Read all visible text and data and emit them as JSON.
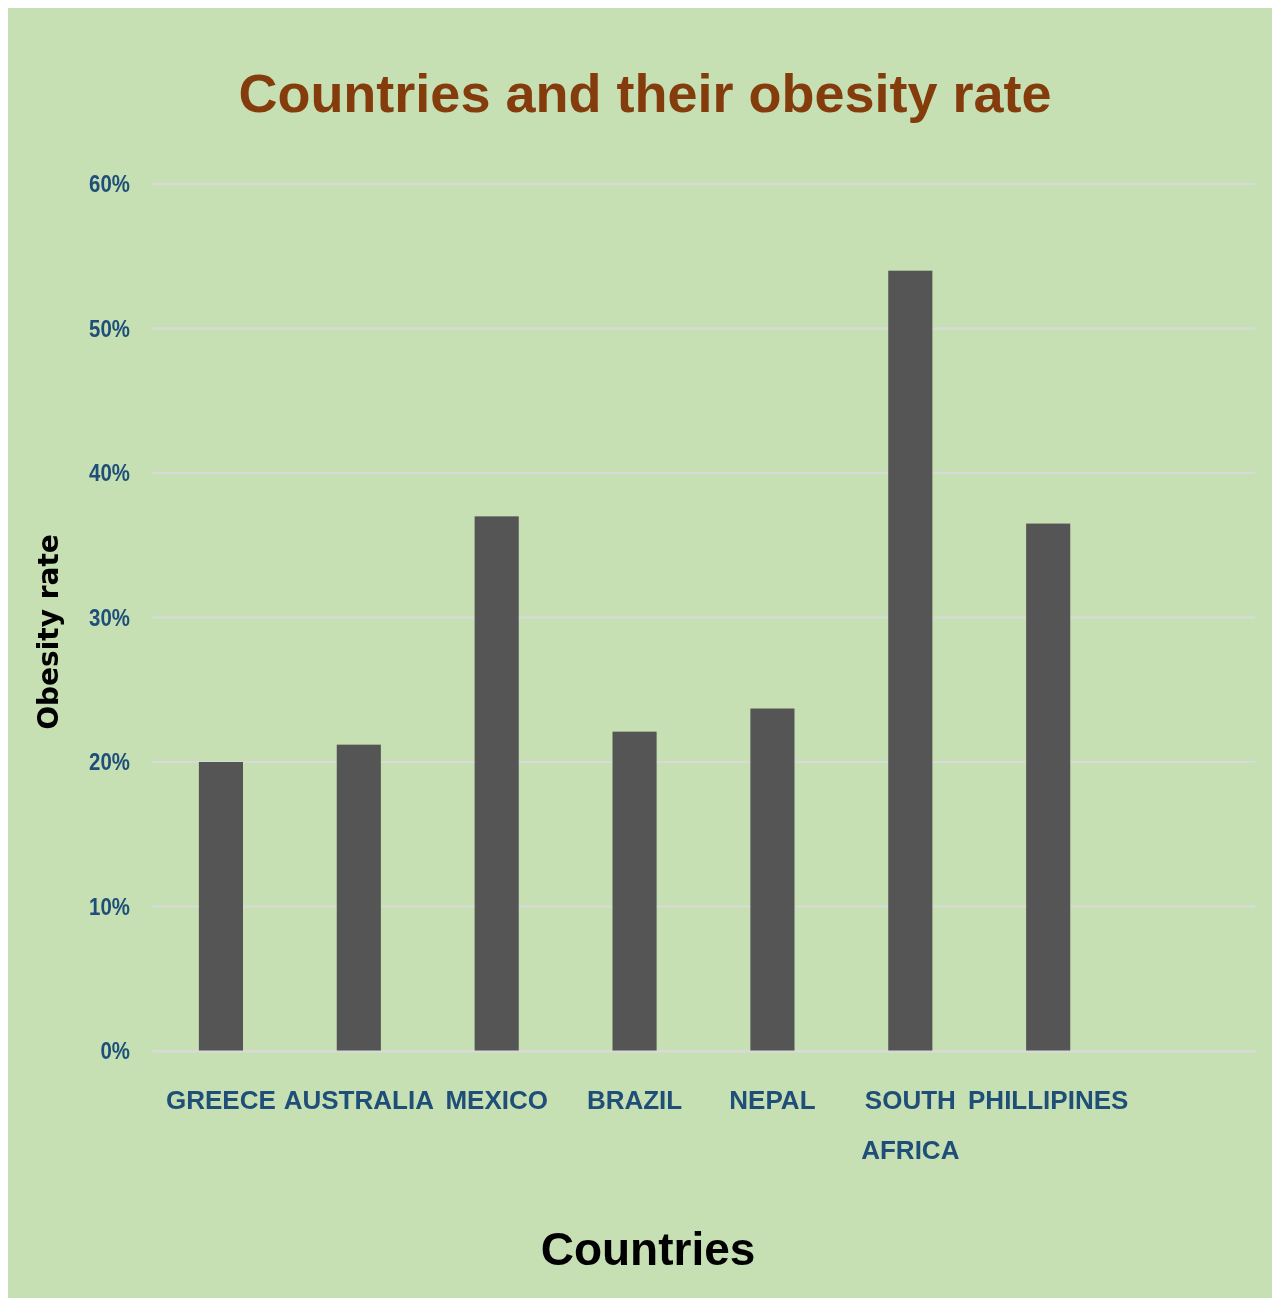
{
  "chart_data": {
    "type": "bar",
    "title": "Countries and their obesity rate",
    "xlabel": "Countries",
    "ylabel": "Obesity rate",
    "categories": [
      "GREECE",
      "AUSTRALIA",
      "MEXICO",
      "BRAZIL",
      "NEPAL",
      "SOUTH AFRICA",
      "PHILLIPINES",
      null
    ],
    "values": [
      20,
      21.2,
      37,
      22.1,
      23.7,
      54,
      36.5,
      null
    ],
    "color": "#555555",
    "ylim": [
      0,
      60
    ],
    "yticks": [
      {
        "value": 0,
        "label": "0%"
      },
      {
        "value": 10,
        "label": "10%"
      },
      {
        "value": 20,
        "label": "20%"
      },
      {
        "value": 30,
        "label": "30%"
      },
      {
        "value": 40,
        "label": "40%"
      },
      {
        "value": 50,
        "label": "50%"
      },
      {
        "value": 60,
        "label": "60%"
      }
    ],
    "grid": "y"
  }
}
